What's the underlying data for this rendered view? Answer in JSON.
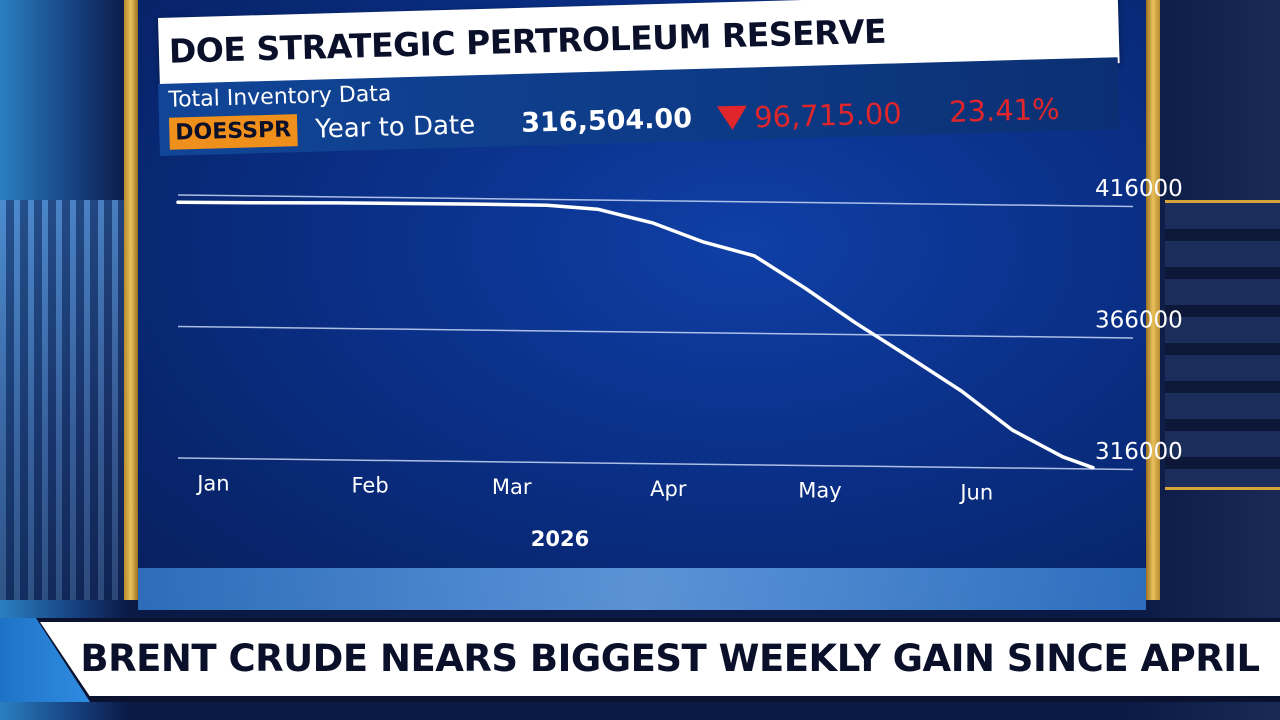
{
  "chart_title": "DOE STRATEGIC PERTROLEUM RESERVE",
  "subtitle": "Total Inventory Data",
  "quote": {
    "ticker": "DOESSPR",
    "period_label": "Year to Date",
    "value": "316,504.00",
    "change": "96,715.00",
    "change_pct": "23.41%",
    "direction": "down"
  },
  "headline": "BRENT CRUDE NEARS BIGGEST WEEKLY GAIN SINCE APRIL",
  "colors": {
    "ticker_bg": "#ef8f1c",
    "negative": "#e0262b",
    "line": "#ffffff"
  },
  "chart_data": {
    "type": "line",
    "xlabel": "2026",
    "ylabel": "",
    "x_ticks": [
      "Jan",
      "Feb",
      "Mar",
      "Apr",
      "May",
      "Jun"
    ],
    "y_ticks": [
      416000,
      366000,
      316000
    ],
    "ylim": [
      316000,
      416000
    ],
    "grid": true,
    "series": [
      {
        "values": [
          {
            "x": "2026-01-01",
            "y": 413219
          },
          {
            "x": "2026-01-15",
            "y": 413400
          },
          {
            "x": "2026-02-01",
            "y": 413700
          },
          {
            "x": "2026-02-15",
            "y": 413800
          },
          {
            "x": "2026-03-01",
            "y": 413900
          },
          {
            "x": "2026-03-15",
            "y": 413800
          },
          {
            "x": "2026-03-25",
            "y": 412500
          },
          {
            "x": "2026-04-05",
            "y": 407500
          },
          {
            "x": "2026-04-15",
            "y": 400500
          },
          {
            "x": "2026-04-25",
            "y": 395500
          },
          {
            "x": "2026-05-05",
            "y": 383500
          },
          {
            "x": "2026-05-15",
            "y": 370500
          },
          {
            "x": "2026-05-25",
            "y": 358500
          },
          {
            "x": "2026-06-05",
            "y": 345000
          },
          {
            "x": "2026-06-15",
            "y": 330500
          },
          {
            "x": "2026-06-25",
            "y": 320500
          },
          {
            "x": "2026-07-01",
            "y": 316504
          }
        ]
      }
    ]
  }
}
